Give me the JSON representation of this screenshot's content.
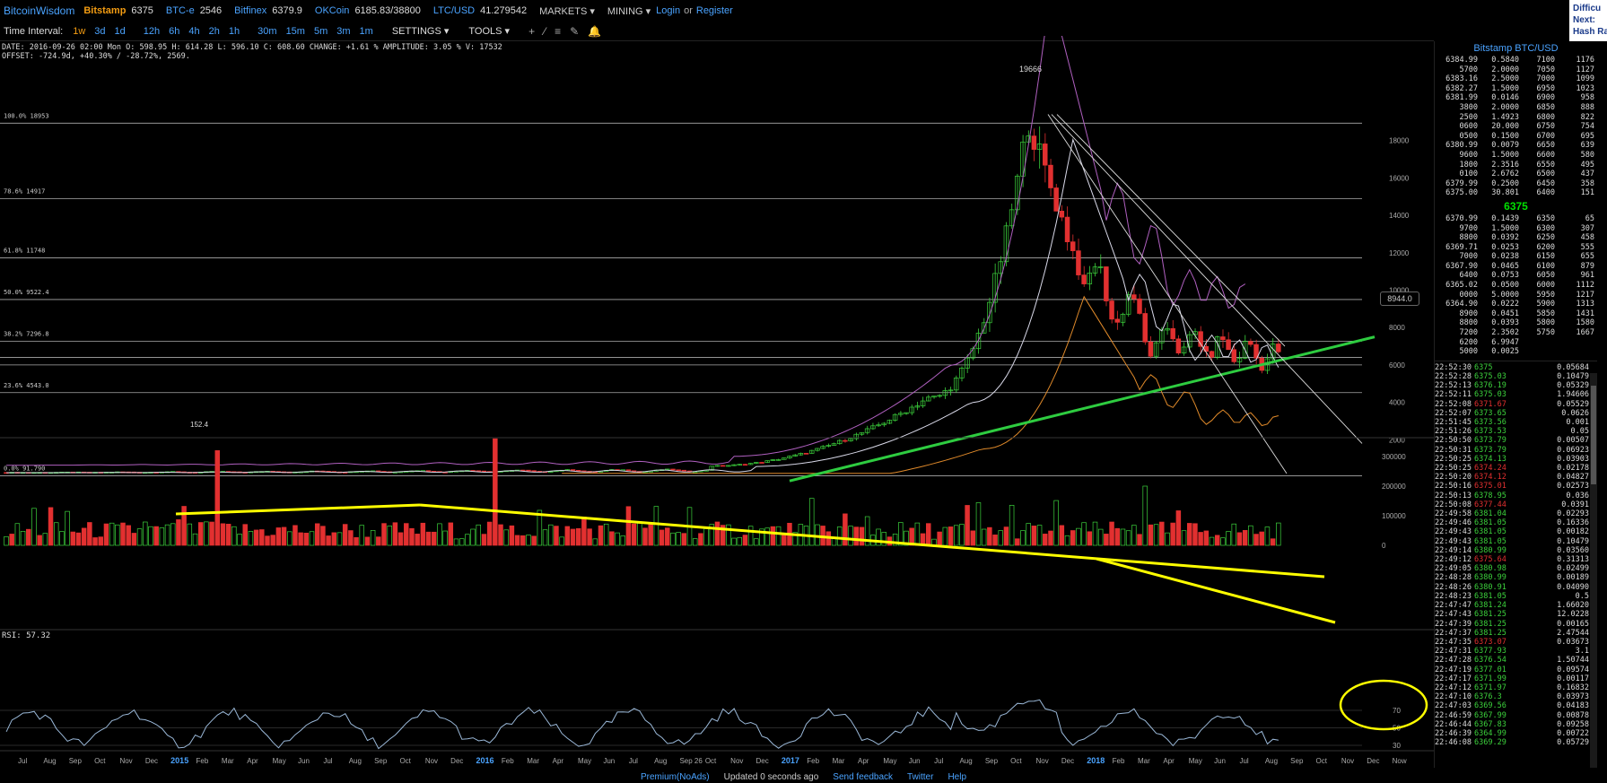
{
  "topbar": {
    "brand": "BitcoinWisdom",
    "tickers": [
      {
        "name": "Bitstamp",
        "price": "6375",
        "style": "ex"
      },
      {
        "name": "BTC-e",
        "price": "2546",
        "style": "exw"
      },
      {
        "name": "Bitfinex",
        "price": "6379.9",
        "style": "exw"
      },
      {
        "name": "OKCoin",
        "price": "6185.83/38800",
        "style": "exw"
      },
      {
        "name": "LTC/USD",
        "price": "41.279542",
        "style": "exw"
      }
    ],
    "markets": "MARKETS ▾",
    "mining": "MINING ▾",
    "login": "Login",
    "or": "or",
    "register": "Register",
    "right_panel": [
      "Difficu",
      "Next:",
      "Hash Ra"
    ]
  },
  "toolbar": {
    "time_label": "Time Interval:",
    "intervals": [
      "1w",
      "3d",
      "1d",
      "12h",
      "6h",
      "4h",
      "2h",
      "1h",
      "30m",
      "15m",
      "5m",
      "3m",
      "1m"
    ],
    "active_interval": "1w",
    "settings": "SETTINGS ▾",
    "tools": "TOOLS ▾"
  },
  "info": {
    "line1": "DATE: 2016-09-26 02:00 Mon   O: 598.95   H: 614.28   L: 596.10   C: 608.60   CHANGE: +1.61 %   AMPLITUDE: 3.05 %   V: 17532",
    "line2": "OFFSET: -724.9d, +40.30% / -28.72%, 2569."
  },
  "chart": {
    "fib_levels": [
      "100.0% 18953",
      "78.6% 14917",
      "61.8% 11748",
      "50.0% 9522.4",
      "38.2% 7296.8",
      "23.6% 4543.0",
      "0.0% 91.790"
    ],
    "peak_label": "19666",
    "low_label": "152.4",
    "price_box": "8944.0",
    "y_axis": [
      "18000",
      "16000",
      "14000",
      "12000",
      "10000",
      "8000",
      "6000",
      "4000",
      "2000"
    ],
    "vol_axis": [
      "300000",
      "200000",
      "100000",
      "0"
    ],
    "rsi_label": "RSI: 57.32",
    "rsi_axis": [
      "70",
      "50",
      "30"
    ],
    "x_axis": [
      "Jul",
      "Aug",
      "Sep",
      "Oct",
      "Nov",
      "Dec",
      "2015",
      "Feb",
      "Mar",
      "Apr",
      "May",
      "Jun",
      "Jul",
      "Aug",
      "Sep",
      "Oct",
      "Nov",
      "Dec",
      "2016",
      "Feb",
      "Mar",
      "Apr",
      "May",
      "Jun",
      "Jul",
      "Aug",
      "Sep 26",
      "Oct",
      "Nov",
      "Dec",
      "2017",
      "Feb",
      "Mar",
      "Apr",
      "May",
      "Jun",
      "Jul",
      "Aug",
      "Sep",
      "Oct",
      "Nov",
      "Dec",
      "2018",
      "Feb",
      "Mar",
      "Apr",
      "May",
      "Jun",
      "Jul",
      "Aug",
      "Sep",
      "Oct",
      "Nov",
      "Dec",
      "Now"
    ],
    "colors": {
      "up": "#3cd23c",
      "down": "#e23030",
      "trend": "#2ecc40",
      "annotation": "#ffff00",
      "ma_orange": "#e08a2a",
      "boll_purple": "#b060c0",
      "rsi": "#9ab8d8"
    }
  },
  "orderbook": {
    "title": "Bitstamp BTC/USD",
    "asks": [
      [
        "6384.99",
        "0.5840",
        "7100",
        "1176"
      ],
      [
        "5700",
        "2.0000",
        "7050",
        "1127"
      ],
      [
        "6383.16",
        "2.5000",
        "7000",
        "1099"
      ],
      [
        "6382.27",
        "1.5000",
        "6950",
        "1023"
      ],
      [
        "6381.99",
        "0.0146",
        "6900",
        "958"
      ],
      [
        "3800",
        "2.0000",
        "6850",
        "888"
      ],
      [
        "2500",
        "1.4923",
        "6800",
        "822"
      ],
      [
        "0600",
        "20.000",
        "6750",
        "754"
      ],
      [
        "0500",
        "0.1500",
        "6700",
        "695"
      ],
      [
        "6380.99",
        "0.0079",
        "6650",
        "639"
      ],
      [
        "9600",
        "1.5000",
        "6600",
        "580"
      ],
      [
        "1800",
        "2.3516",
        "6550",
        "495"
      ],
      [
        "0100",
        "2.6762",
        "6500",
        "437"
      ],
      [
        "6379.99",
        "0.2500",
        "6450",
        "358"
      ],
      [
        "6375.00",
        "30.801",
        "6400",
        "151"
      ]
    ],
    "last": "6375",
    "bids": [
      [
        "6370.99",
        "0.1439",
        "6350",
        "65"
      ],
      [
        "9700",
        "1.5000",
        "6300",
        "307"
      ],
      [
        "8800",
        "0.0392",
        "6250",
        "458"
      ],
      [
        "6369.71",
        "0.0253",
        "6200",
        "555"
      ],
      [
        "7000",
        "0.0238",
        "6150",
        "655"
      ],
      [
        "6367.90",
        "0.0465",
        "6100",
        "879"
      ],
      [
        "6400",
        "0.0753",
        "6050",
        "961"
      ],
      [
        "6365.02",
        "0.0500",
        "6000",
        "1112"
      ],
      [
        "0000",
        "5.0000",
        "5950",
        "1217"
      ],
      [
        "6364.90",
        "0.0222",
        "5900",
        "1313"
      ],
      [
        "8900",
        "0.0451",
        "5850",
        "1431"
      ],
      [
        "8800",
        "0.0393",
        "5800",
        "1580"
      ],
      [
        "7200",
        "2.3502",
        "5750",
        "1667"
      ],
      [
        "6200",
        "6.9947",
        "",
        ""
      ],
      [
        "5000",
        "0.0025",
        "",
        ""
      ]
    ]
  },
  "trades": [
    [
      "22:52:30",
      "6375",
      "0.05684",
      "up"
    ],
    [
      "22:52:28",
      "6375.03",
      "0.10479",
      "up"
    ],
    [
      "22:52:13",
      "6376.19",
      "0.05329",
      "up"
    ],
    [
      "22:52:11",
      "6375.03",
      "1.94606",
      "up"
    ],
    [
      "22:52:08",
      "6371.67",
      "0.05529",
      "dn"
    ],
    [
      "22:52:07",
      "6373.65",
      "0.0626",
      "up"
    ],
    [
      "22:51:45",
      "6373.56",
      "0.001",
      "up"
    ],
    [
      "22:51:26",
      "6373.53",
      "0.05",
      "up"
    ],
    [
      "22:50:50",
      "6373.79",
      "0.00507",
      "up"
    ],
    [
      "22:50:31",
      "6373.79",
      "0.06923",
      "up"
    ],
    [
      "22:50:25",
      "6374.13",
      "0.03903",
      "up"
    ],
    [
      "22:50:25",
      "6374.24",
      "0.02178",
      "dn"
    ],
    [
      "22:50:20",
      "6374.12",
      "0.04827",
      "dn"
    ],
    [
      "22:50:16",
      "6375.01",
      "0.02573",
      "dn"
    ],
    [
      "22:50:13",
      "6378.95",
      "0.036",
      "up"
    ],
    [
      "22:50:08",
      "6377.44",
      "0.0391",
      "dn"
    ],
    [
      "22:49:58",
      "6381.04",
      "0.02293",
      "up"
    ],
    [
      "22:49:46",
      "6381.05",
      "0.16336",
      "up"
    ],
    [
      "22:49:43",
      "6381.05",
      "0.00182",
      "up"
    ],
    [
      "22:49:43",
      "6381.05",
      "0.10479",
      "up"
    ],
    [
      "22:49:14",
      "6380.99",
      "0.03560",
      "up"
    ],
    [
      "22:49:12",
      "6375.64",
      "0.31313",
      "dn"
    ],
    [
      "22:49:05",
      "6380.98",
      "0.02499",
      "up"
    ],
    [
      "22:48:28",
      "6380.99",
      "0.00189",
      "up"
    ],
    [
      "22:48:26",
      "6380.91",
      "0.04090",
      "up"
    ],
    [
      "22:48:23",
      "6381.05",
      "0.5",
      "up"
    ],
    [
      "22:47:47",
      "6381.24",
      "1.66020",
      "up"
    ],
    [
      "22:47:43",
      "6381.25",
      "12.0228",
      "up"
    ],
    [
      "22:47:39",
      "6381.25",
      "0.00165",
      "up"
    ],
    [
      "22:47:37",
      "6381.25",
      "2.47544",
      "up"
    ],
    [
      "22:47:35",
      "6373.07",
      "0.03673",
      "dn"
    ],
    [
      "22:47:31",
      "6377.93",
      "3.1",
      "up"
    ],
    [
      "22:47:28",
      "6376.54",
      "1.50744",
      "up"
    ],
    [
      "22:47:19",
      "6377.01",
      "0.09574",
      "up"
    ],
    [
      "22:47:17",
      "6371.99",
      "0.00117",
      "up"
    ],
    [
      "22:47:12",
      "6371.97",
      "0.16832",
      "up"
    ],
    [
      "22:47:10",
      "6376.3",
      "0.03973",
      "up"
    ],
    [
      "22:47:03",
      "6369.56",
      "0.04183",
      "up"
    ],
    [
      "22:46:59",
      "6367.99",
      "0.00878",
      "up"
    ],
    [
      "22:46:44",
      "6367.83",
      "0.09258",
      "up"
    ],
    [
      "22:46:39",
      "6364.99",
      "0.00722",
      "up"
    ],
    [
      "22:46:08",
      "6369.29",
      "0.05729",
      "up"
    ]
  ],
  "footer": {
    "premium": "Premium(NoAds)",
    "updated": "Updated 0 seconds ago",
    "feedback": "Send feedback",
    "twitter": "Twitter",
    "help": "Help"
  }
}
